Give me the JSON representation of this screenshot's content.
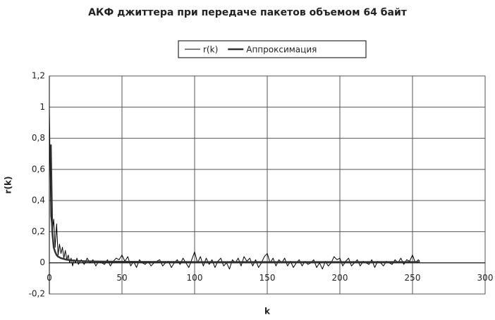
{
  "chart_data": {
    "type": "line",
    "title": "АКФ джиттера при передаче пакетов объемом 64 байт",
    "x_label": "k",
    "y_label": "r(k)",
    "xlim": [
      0,
      300
    ],
    "xticks": [
      0,
      50,
      100,
      150,
      200,
      250,
      300
    ],
    "ylim": [
      -0.2,
      1.2
    ],
    "yticks": [
      {
        "value": -0.2,
        "label": "-0,2"
      },
      0,
      {
        "value": 0.2,
        "label": "0,2"
      },
      {
        "value": 0.4,
        "label": "0,4"
      },
      {
        "value": 0.6,
        "label": "0,6"
      },
      {
        "value": 0.8,
        "label": "0,8"
      },
      1,
      {
        "value": 1.2,
        "label": "1,2"
      }
    ],
    "grid": true,
    "legend": "top",
    "series": [
      {
        "name": "r(k)",
        "color": "#000000",
        "line_width": 1,
        "x": [
          0,
          1,
          2,
          3,
          4,
          5,
          6,
          7,
          8,
          9,
          10,
          11,
          12,
          13,
          14,
          15,
          16,
          17,
          18,
          19,
          20,
          22,
          24,
          26,
          28,
          30,
          32,
          34,
          36,
          38,
          40,
          42,
          44,
          46,
          48,
          50,
          52,
          54,
          56,
          58,
          60,
          62,
          64,
          66,
          68,
          70,
          72,
          74,
          76,
          78,
          80,
          82,
          84,
          86,
          88,
          90,
          92,
          94,
          96,
          98,
          100,
          102,
          104,
          106,
          108,
          110,
          112,
          114,
          116,
          118,
          120,
          122,
          124,
          126,
          128,
          130,
          132,
          134,
          136,
          138,
          140,
          142,
          144,
          146,
          148,
          150,
          152,
          154,
          156,
          158,
          160,
          162,
          164,
          166,
          168,
          170,
          172,
          174,
          176,
          178,
          180,
          182,
          184,
          186,
          188,
          190,
          192,
          194,
          196,
          198,
          200,
          202,
          204,
          206,
          208,
          210,
          212,
          214,
          216,
          218,
          220,
          222,
          224,
          226,
          228,
          230,
          232,
          234,
          236,
          238,
          240,
          242,
          244,
          246,
          248,
          250,
          252,
          254,
          255
        ],
        "values": [
          1.0,
          0.3,
          0.2,
          0.28,
          0.1,
          0.25,
          0.05,
          0.12,
          0.06,
          0.1,
          0.03,
          0.08,
          0.02,
          0.05,
          0,
          0.03,
          -0.02,
          0.02,
          0,
          0.03,
          -0.01,
          0.02,
          -0.01,
          0.03,
          0,
          0.02,
          -0.02,
          0.01,
          0,
          -0.01,
          0.02,
          -0.02,
          0.01,
          0.03,
          0.02,
          0.05,
          0.01,
          0.04,
          -0.02,
          0.01,
          -0.03,
          0.02,
          0,
          -0.01,
          0.01,
          -0.02,
          0,
          0.01,
          0.02,
          -0.02,
          0,
          0.01,
          -0.03,
          0,
          0.02,
          -0.01,
          0.03,
          0,
          -0.03,
          0.02,
          0.07,
          0,
          0.04,
          -0.02,
          0.03,
          -0.01,
          0.02,
          -0.03,
          0.01,
          0.03,
          -0.02,
          0,
          -0.04,
          0.02,
          0,
          0.03,
          -0.02,
          0.04,
          0.01,
          0.03,
          -0.02,
          0.02,
          -0.03,
          0,
          0.04,
          0.06,
          0,
          0.03,
          -0.02,
          0.02,
          0,
          0.03,
          -0.02,
          0.01,
          -0.03,
          0,
          0.02,
          -0.02,
          0.01,
          -0.01,
          0,
          0.02,
          -0.03,
          0,
          -0.04,
          0.01,
          -0.02,
          0,
          0.04,
          0.02,
          0.03,
          -0.02,
          0.01,
          0.03,
          -0.02,
          0,
          0.02,
          -0.02,
          0.01,
          0,
          -0.01,
          0.02,
          -0.03,
          0.01,
          0,
          -0.02,
          0.01,
          0,
          -0.01,
          0.02,
          0,
          0.03,
          -0.01,
          0.02,
          0.01,
          0.05,
          0,
          0.02,
          0.01
        ]
      },
      {
        "name": "Аппроксимация",
        "color": "#333333",
        "line_width": 2.5,
        "x": [
          1,
          2,
          3,
          4,
          5,
          6,
          8,
          10,
          12,
          15,
          20,
          25,
          30,
          40,
          50,
          65,
          100,
          150,
          200,
          255
        ],
        "values": [
          0.76,
          0.2,
          0.1,
          0.07,
          0.05,
          0.04,
          0.03,
          0.025,
          0.02,
          0.016,
          0.012,
          0.01,
          0.009,
          0.008,
          0.007,
          0.006,
          0.005,
          0.005,
          0.005,
          0.005
        ]
      }
    ]
  }
}
